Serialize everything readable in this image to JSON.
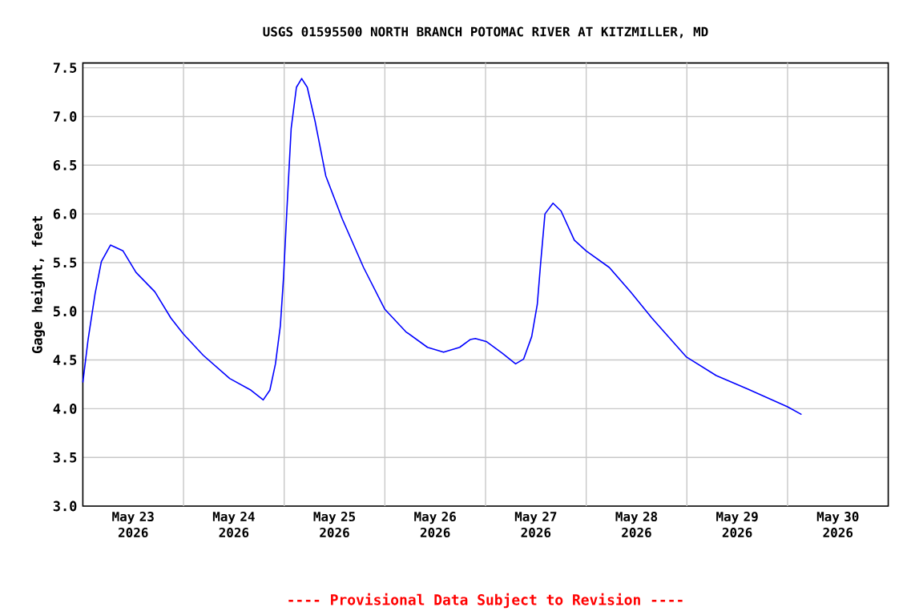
{
  "chart_data": {
    "type": "line",
    "title": "USGS 01595500 NORTH BRANCH POTOMAC RIVER AT KITZMILLER, MD",
    "ylabel": "Gage height, feet",
    "annotations": [
      "---- Provisional Data Subject to Revision ----"
    ],
    "xlim": [
      "2026-05-23T00:00",
      "2026-05-31T00:00"
    ],
    "ylim": [
      3.0,
      7.55
    ],
    "xticks": [
      {
        "value": "2026-05-23T12:00",
        "label": "May 23 2026"
      },
      {
        "value": "2026-05-24T12:00",
        "label": "May 24 2026"
      },
      {
        "value": "2026-05-25T12:00",
        "label": "May 25 2026"
      },
      {
        "value": "2026-05-26T12:00",
        "label": "May 26 2026"
      },
      {
        "value": "2026-05-27T12:00",
        "label": "May 27 2026"
      },
      {
        "value": "2026-05-28T12:00",
        "label": "May 28 2026"
      },
      {
        "value": "2026-05-29T12:00",
        "label": "May 29 2026"
      },
      {
        "value": "2026-05-30T12:00",
        "label": "May 30 2026"
      },
      {
        "value": "2026-05-24T00:00",
        "label": null
      },
      {
        "value": "2026-05-25T00:00",
        "label": null
      },
      {
        "value": "2026-05-26T00:00",
        "label": null
      },
      {
        "value": "2026-05-27T00:00",
        "label": null
      },
      {
        "value": "2026-05-28T00:00",
        "label": null
      },
      {
        "value": "2026-05-29T00:00",
        "label": null
      },
      {
        "value": "2026-05-30T00:00",
        "label": null
      }
    ],
    "yticks": [
      {
        "value": 3.0,
        "label": "3.0"
      },
      {
        "value": 3.5,
        "label": "3.5"
      },
      {
        "value": 4.0,
        "label": "4.0"
      },
      {
        "value": 4.5,
        "label": "4.5"
      },
      {
        "value": 5.0,
        "label": "5.0"
      },
      {
        "value": 5.5,
        "label": "5.5"
      },
      {
        "value": 6.0,
        "label": "6.0"
      },
      {
        "value": 6.5,
        "label": "6.5"
      },
      {
        "value": 7.0,
        "label": "7.0"
      },
      {
        "value": 7.5,
        "label": "7.5"
      }
    ],
    "grid": true,
    "series": [
      {
        "color": "#0000ff",
        "x": [
          "2026-05-23T00:00",
          "2026-05-23T01:15",
          "2026-05-23T02:55",
          "2026-05-23T04:25",
          "2026-05-23T06:35",
          "2026-05-23T09:35",
          "2026-05-23T12:40",
          "2026-05-23T17:10",
          "2026-05-23T21:00",
          "2026-05-23T23:55",
          "2026-05-24T04:40",
          "2026-05-24T11:00",
          "2026-05-24T16:05",
          "2026-05-24T19:00",
          "2026-05-24T20:35",
          "2026-05-24T21:55",
          "2026-05-24T23:05",
          "2026-05-24T23:50",
          "2026-05-25T00:40",
          "2026-05-25T01:40",
          "2026-05-25T02:55",
          "2026-05-25T04:10",
          "2026-05-25T05:30",
          "2026-05-25T07:25",
          "2026-05-25T09:55",
          "2026-05-25T13:50",
          "2026-05-25T18:55",
          "2026-05-26T00:00",
          "2026-05-26T05:00",
          "2026-05-26T10:10",
          "2026-05-26T14:00",
          "2026-05-26T17:50",
          "2026-05-26T20:20",
          "2026-05-26T21:35",
          "2026-05-27T00:10",
          "2026-05-27T04:00",
          "2026-05-27T07:10",
          "2026-05-27T09:05",
          "2026-05-27T11:00",
          "2026-05-27T12:20",
          "2026-05-27T13:10",
          "2026-05-27T14:10",
          "2026-05-27T16:05",
          "2026-05-27T18:00",
          "2026-05-27T21:10",
          "2026-05-28T00:00",
          "2026-05-28T05:30",
          "2026-05-28T10:35",
          "2026-05-28T15:40",
          "2026-05-28T23:55",
          "2026-05-29T07:00",
          "2026-05-29T14:35",
          "2026-05-30T00:00",
          "2026-05-30T03:20"
        ],
        "values": [
          4.27,
          4.71,
          5.18,
          5.51,
          5.68,
          5.62,
          5.4,
          5.2,
          4.93,
          4.77,
          4.55,
          4.31,
          4.19,
          4.09,
          4.19,
          4.46,
          4.85,
          5.34,
          6.06,
          6.88,
          7.3,
          7.39,
          7.3,
          6.94,
          6.39,
          5.95,
          5.45,
          5.02,
          4.79,
          4.63,
          4.58,
          4.63,
          4.71,
          4.72,
          4.69,
          4.57,
          4.46,
          4.51,
          4.74,
          5.07,
          5.51,
          6.0,
          6.11,
          6.03,
          5.73,
          5.62,
          5.45,
          5.2,
          4.93,
          4.53,
          4.34,
          4.2,
          4.02,
          3.94
        ]
      }
    ]
  }
}
